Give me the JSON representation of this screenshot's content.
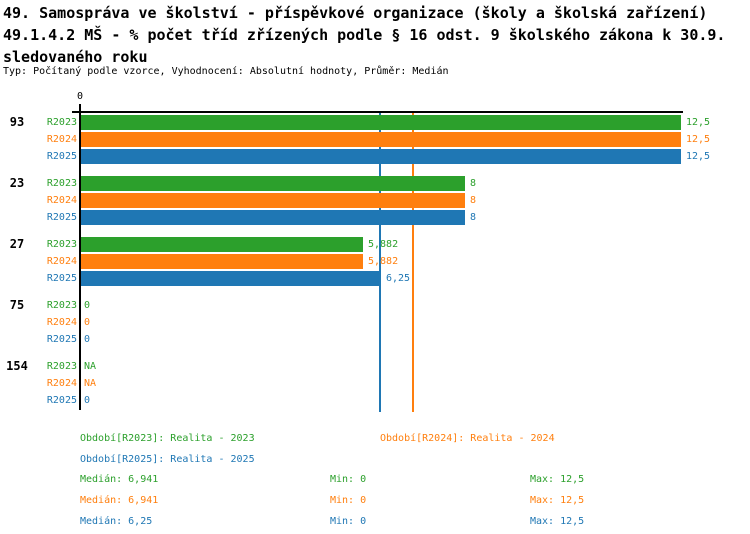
{
  "header": {
    "title_line1": "49. Samospráva ve školství - příspěvkové organizace (školy a školská zařízení)",
    "title_line2": "49.1.4.2 MŠ - % počet tříd zřízených podle § 16 odst. 9 školského zákona k 30.9.",
    "title_line3": "sledovaného roku",
    "subtitle": "Typ: Počítaný podle vzorce, Vyhodnocení: Absolutní hodnoty, Průměr: Medián"
  },
  "colors": {
    "R2023": "#2ca02c",
    "R2024": "#ff7f0e",
    "R2025": "#1f77b4",
    "axis": "#000000"
  },
  "axis": {
    "zero_label": "0",
    "min": 0,
    "max": 12.5
  },
  "groups": [
    {
      "label": "93",
      "bars": [
        {
          "series": "R2023",
          "value": 12.5,
          "display": "12,5"
        },
        {
          "series": "R2024",
          "value": 12.5,
          "display": "12,5"
        },
        {
          "series": "R2025",
          "value": 12.5,
          "display": "12,5"
        }
      ]
    },
    {
      "label": "23",
      "bars": [
        {
          "series": "R2023",
          "value": 8,
          "display": "8"
        },
        {
          "series": "R2024",
          "value": 8,
          "display": "8"
        },
        {
          "series": "R2025",
          "value": 8,
          "display": "8"
        }
      ]
    },
    {
      "label": "27",
      "bars": [
        {
          "series": "R2023",
          "value": 5.882,
          "display": "5,882"
        },
        {
          "series": "R2024",
          "value": 5.882,
          "display": "5,882"
        },
        {
          "series": "R2025",
          "value": 6.25,
          "display": "6,25"
        }
      ]
    },
    {
      "label": "75",
      "bars": [
        {
          "series": "R2023",
          "value": 0,
          "display": "0"
        },
        {
          "series": "R2024",
          "value": 0,
          "display": "0"
        },
        {
          "series": "R2025",
          "value": 0,
          "display": "0"
        }
      ]
    },
    {
      "label": "154",
      "bars": [
        {
          "series": "R2023",
          "value": null,
          "display": "NA"
        },
        {
          "series": "R2024",
          "value": null,
          "display": "NA"
        },
        {
          "series": "R2025",
          "value": 0,
          "display": "0"
        }
      ]
    }
  ],
  "reference_lines": [
    {
      "series": "R2023",
      "value": 6.941
    },
    {
      "series": "R2024",
      "value": 6.941
    },
    {
      "series": "R2025",
      "value": 6.25
    }
  ],
  "legend": [
    {
      "series": "R2023",
      "text": "Období[R2023]: Realita - 2023"
    },
    {
      "series": "R2024",
      "text": "Období[R2024]: Realita - 2024"
    },
    {
      "series": "R2025",
      "text": "Období[R2025]: Realita - 2025"
    }
  ],
  "stats": [
    {
      "series": "R2023",
      "median_text": "Medián: 6,941",
      "min_text": "Min: 0",
      "max_text": "Max: 12,5"
    },
    {
      "series": "R2024",
      "median_text": "Medián: 6,941",
      "min_text": "Min: 0",
      "max_text": "Max: 12,5"
    },
    {
      "series": "R2025",
      "median_text": "Medián: 6,25",
      "min_text": "Min: 0",
      "max_text": "Max: 12,5"
    }
  ],
  "chart_data": {
    "type": "bar",
    "orientation": "horizontal",
    "title": "49.1.4.2 MŠ - % počet tříd zřízených podle § 16 odst. 9 školského zákona k 30.9. sledovaného roku",
    "subtitle": "Typ: Počítaný podle vzorce, Vyhodnocení: Absolutní hodnoty, Průměr: Medián",
    "categories": [
      "93",
      "23",
      "27",
      "75",
      "154"
    ],
    "series": [
      {
        "name": "Realita - 2023",
        "key": "R2023",
        "color": "#2ca02c",
        "values": [
          12.5,
          8,
          5.882,
          0,
          "NA"
        ],
        "median": 6.941,
        "min": 0,
        "max": 12.5
      },
      {
        "name": "Realita - 2024",
        "key": "R2024",
        "color": "#ff7f0e",
        "values": [
          12.5,
          8,
          5.882,
          0,
          "NA"
        ],
        "median": 6.941,
        "min": 0,
        "max": 12.5
      },
      {
        "name": "Realita - 2025",
        "key": "R2025",
        "color": "#1f77b4",
        "values": [
          12.5,
          8,
          6.25,
          0,
          0
        ],
        "median": 6.25,
        "min": 0,
        "max": 12.5
      }
    ],
    "xlim": [
      0,
      12.5
    ],
    "value_axis_ticks": [
      "0"
    ],
    "grid": false,
    "legend_position": "bottom",
    "reference_lines": [
      {
        "series": "R2023",
        "value": 6.941
      },
      {
        "series": "R2024",
        "value": 6.941
      },
      {
        "series": "R2025",
        "value": 6.25
      }
    ]
  }
}
